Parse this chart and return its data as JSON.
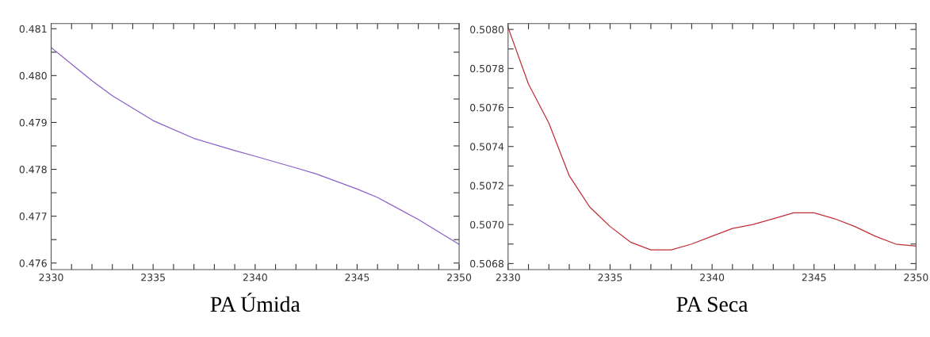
{
  "chart_data": [
    {
      "type": "line",
      "xlabel": "PA Úmida",
      "xlim": [
        2330,
        2350
      ],
      "ylim": [
        0.47586,
        0.48111
      ],
      "grid": false,
      "legend": false,
      "xticks": [
        2330,
        {
          "value": 2331,
          "label": null
        },
        {
          "value": 2332,
          "label": null
        },
        {
          "value": 2333,
          "label": null
        },
        {
          "value": 2334,
          "label": null
        },
        2335,
        {
          "value": 2336,
          "label": null
        },
        {
          "value": 2337,
          "label": null
        },
        {
          "value": 2338,
          "label": null
        },
        {
          "value": 2339,
          "label": null
        },
        2340,
        {
          "value": 2341,
          "label": null
        },
        {
          "value": 2342,
          "label": null
        },
        {
          "value": 2343,
          "label": null
        },
        {
          "value": 2344,
          "label": null
        },
        2345,
        {
          "value": 2346,
          "label": null
        },
        {
          "value": 2347,
          "label": null
        },
        {
          "value": 2348,
          "label": null
        },
        {
          "value": 2349,
          "label": null
        },
        2350
      ],
      "yticks": [
        0.476,
        {
          "value": 0.4765,
          "label": null
        },
        0.477,
        {
          "value": 0.4775,
          "label": null
        },
        0.478,
        {
          "value": 0.4785,
          "label": null
        },
        0.479,
        {
          "value": 0.4795,
          "label": null
        },
        {
          "value": 0.48,
          "label": "0.480"
        },
        {
          "value": 0.4805,
          "label": null
        },
        0.481
      ],
      "x": [
        2330,
        2332,
        2333,
        2335,
        2337,
        2339,
        2340,
        2342,
        2343,
        2345,
        2346,
        2348,
        2350
      ],
      "series": [
        {
          "color": "#8a5fc8",
          "values": [
            0.4806,
            0.47989,
            0.47957,
            0.47904,
            0.47866,
            0.4784,
            0.47828,
            0.47803,
            0.4779,
            0.47758,
            0.4774,
            0.47693,
            0.4764
          ]
        }
      ]
    },
    {
      "type": "line",
      "xlabel": "PA Seca",
      "xlim": [
        2330,
        2350
      ],
      "ylim": [
        0.506769,
        0.50803
      ],
      "grid": false,
      "legend": false,
      "xticks": [
        2330,
        {
          "value": 2331,
          "label": null
        },
        {
          "value": 2332,
          "label": null
        },
        {
          "value": 2333,
          "label": null
        },
        {
          "value": 2334,
          "label": null
        },
        2335,
        {
          "value": 2336,
          "label": null
        },
        {
          "value": 2337,
          "label": null
        },
        {
          "value": 2338,
          "label": null
        },
        {
          "value": 2339,
          "label": null
        },
        2340,
        {
          "value": 2341,
          "label": null
        },
        {
          "value": 2342,
          "label": null
        },
        {
          "value": 2343,
          "label": null
        },
        {
          "value": 2344,
          "label": null
        },
        2345,
        {
          "value": 2346,
          "label": null
        },
        {
          "value": 2347,
          "label": null
        },
        {
          "value": 2348,
          "label": null
        },
        {
          "value": 2349,
          "label": null
        },
        2350
      ],
      "yticks": [
        0.5068,
        {
          "value": 0.5069,
          "label": null
        },
        {
          "value": 0.507,
          "label": "0.5070"
        },
        {
          "value": 0.5071,
          "label": null
        },
        0.5072,
        {
          "value": 0.5073,
          "label": null
        },
        0.5074,
        {
          "value": 0.5075,
          "label": null
        },
        0.5076,
        {
          "value": 0.5077,
          "label": null
        },
        0.5078,
        {
          "value": 0.5079,
          "label": null
        },
        {
          "value": 0.508,
          "label": "0.5080"
        }
      ],
      "x": [
        2330,
        2331,
        2332,
        2333,
        2334,
        2335,
        2336,
        2337,
        2338,
        2339,
        2340,
        2341,
        2342,
        2343,
        2344,
        2345,
        2346,
        2347,
        2348,
        2349,
        2350
      ],
      "series": [
        {
          "color": "#c0303a",
          "values": [
            0.50801,
            0.50772,
            0.50752,
            0.50725,
            0.50709,
            0.50699,
            0.50691,
            0.50687,
            0.50687,
            0.5069,
            0.50694,
            0.50698,
            0.507,
            0.50703,
            0.50706,
            0.50706,
            0.50703,
            0.50699,
            0.50694,
            0.5069,
            0.50689
          ]
        }
      ]
    }
  ]
}
